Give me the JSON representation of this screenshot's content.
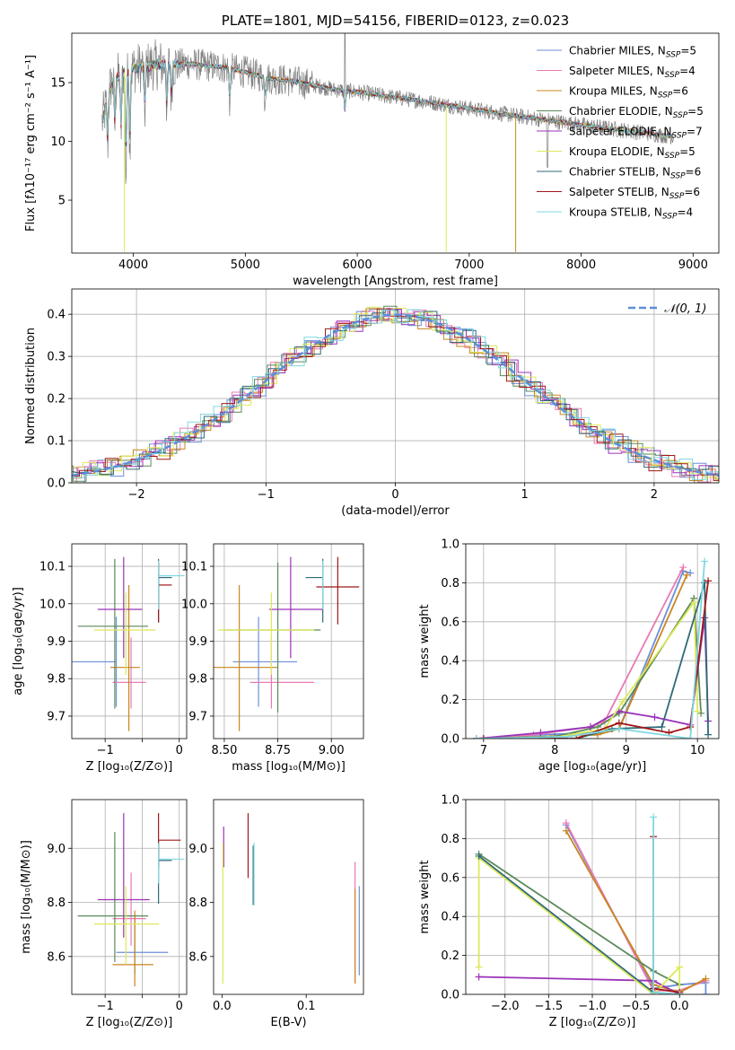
{
  "chart_data": [
    {
      "type": "line",
      "title": "PLATE=1801, MJD=54156, FIBERID=0123, z=0.023",
      "xlabel": "wavelength [Angstrom, rest frame]",
      "ylabel": "Flux [fλ10⁻¹⁷ erg cm⁻² s⁻¹ A⁻¹]",
      "xlim": [
        3450,
        9230
      ],
      "ylim": [
        0.5,
        19.2
      ],
      "xticks": [
        4000,
        5000,
        6000,
        7000,
        8000,
        9000
      ],
      "yticks": [
        5,
        10,
        15
      ],
      "grid": false,
      "legend_position": "top-right",
      "observed_spectrum_color": "#808080",
      "continuum": {
        "x": [
          3700,
          3800,
          3900,
          4000,
          4200,
          4500,
          4800,
          5000,
          5200,
          5500,
          5800,
          6000,
          6300,
          6600,
          7000,
          7400,
          7700,
          8000,
          8500,
          9000
        ],
        "y": [
          10.8,
          14.8,
          15.8,
          16.2,
          16.5,
          16.6,
          16.3,
          15.9,
          15.4,
          15.0,
          14.4,
          14.2,
          13.8,
          13.4,
          12.8,
          12.2,
          11.8,
          11.4,
          10.8,
          10.2
        ]
      },
      "absorption_features": [
        {
          "x": 3770,
          "depth": 4.0
        },
        {
          "x": 3835,
          "depth": 4.0
        },
        {
          "x": 3890,
          "depth": 5.0
        },
        {
          "x": 3934,
          "depth": 9.0
        },
        {
          "x": 3968,
          "depth": 7.0
        },
        {
          "x": 4102,
          "depth": 4.0
        },
        {
          "x": 4300,
          "depth": 4.0
        },
        {
          "x": 4340,
          "depth": 3.0
        },
        {
          "x": 4861,
          "depth": 3.0
        },
        {
          "x": 5175,
          "depth": 2.0
        },
        {
          "x": 5890,
          "depth": 2.0
        }
      ],
      "series": [
        {
          "name": "Chabrier MILES",
          "nssp": "5",
          "color": "#6b8fd9"
        },
        {
          "name": "Salpeter MILES",
          "nssp": "4",
          "color": "#e87ab6"
        },
        {
          "name": "Kroupa MILES",
          "nssp": "6",
          "color": "#c8861e"
        },
        {
          "name": "Chabrier ELODIE",
          "nssp": "5",
          "color": "#5b8a5a"
        },
        {
          "name": "Salpeter ELODIE",
          "nssp": "7",
          "color": "#9b32b8"
        },
        {
          "name": "Kroupa ELODIE",
          "nssp": "5",
          "color": "#dde85a"
        },
        {
          "name": "Chabrier STELIB",
          "nssp": "6",
          "color": "#2f6a78"
        },
        {
          "name": "Salpeter STELIB",
          "nssp": "6",
          "color": "#a01818"
        },
        {
          "name": "Kroupa STELIB",
          "nssp": "4",
          "color": "#80d8e0"
        }
      ],
      "legend_subscript": "SSP",
      "legend_prefix": "N"
    },
    {
      "type": "line",
      "xlabel": "(data-model)/error",
      "ylabel": "Normed distribution",
      "xlim": [
        -2.5,
        2.5
      ],
      "ylim": [
        0,
        0.46
      ],
      "xticks": [
        -2,
        -1,
        0,
        1,
        2
      ],
      "yticks": [
        0.0,
        0.1,
        0.2,
        0.3,
        0.4
      ],
      "grid": true,
      "legend_position": "top-right",
      "normal_curve": {
        "label": "𝒩(0, 1)",
        "color": "#5b8fd9"
      },
      "histogram_bin_width": 0.1,
      "series_colors": [
        "#6b8fd9",
        "#e87ab6",
        "#c8861e",
        "#5b8a5a",
        "#9b32b8",
        "#dde85a",
        "#2f6a78",
        "#a01818",
        "#80d8e0"
      ]
    },
    {
      "type": "scatter",
      "ylabel": "age  [log₁₀(age/yr)]",
      "xlabel": "Z [log₁₀(Z/Z⊙)]",
      "xlim": [
        -1.45,
        0.1
      ],
      "ylim": [
        9.64,
        10.16
      ],
      "xticks": [
        -1,
        -0.5,
        0
      ],
      "xticklabels": [
        "−1",
        "",
        "0"
      ],
      "yticks": [
        9.7,
        9.8,
        9.9,
        10.0,
        10.1
      ],
      "grid": true,
      "crosses": [
        {
          "x": -0.85,
          "y": 9.845,
          "xerr": [
            0.85,
            0.0
          ],
          "yerr": [
            0.0,
            0.0
          ],
          "color": "#6b8fd9"
        },
        {
          "x": -0.85,
          "y": 9.845,
          "xerr": [
            0.0,
            0.0
          ],
          "yerr": [
            0.12,
            0.12
          ],
          "color": "#6b8fd9"
        },
        {
          "x": -0.65,
          "y": 9.79,
          "xerr": [
            0.25,
            0.2
          ],
          "yerr": [
            0.07,
            0.12
          ],
          "color": "#e87ab6"
        },
        {
          "x": -0.68,
          "y": 9.83,
          "xerr": [
            0.25,
            0.15
          ],
          "yerr": [
            0.17,
            0.22
          ],
          "color": "#c8861e"
        },
        {
          "x": -0.87,
          "y": 9.94,
          "xerr": [
            0.5,
            0.45
          ],
          "yerr": [
            0.22,
            0.18
          ],
          "color": "#5b8a5a"
        },
        {
          "x": -0.75,
          "y": 9.985,
          "xerr": [
            0.35,
            0.25
          ],
          "yerr": [
            0.13,
            0.14
          ],
          "color": "#9b32b8"
        },
        {
          "x": -0.72,
          "y": 9.93,
          "xerr": [
            0.43,
            0.4
          ],
          "yerr": [
            0.12,
            0.1
          ],
          "color": "#dde85a"
        },
        {
          "x": -0.28,
          "y": 10.07,
          "xerr": [
            0.0,
            0.18
          ],
          "yerr": [
            0.12,
            0.05
          ],
          "color": "#2f6a78"
        },
        {
          "x": -0.28,
          "y": 10.05,
          "xerr": [
            0.0,
            0.18
          ],
          "yerr": [
            0.1,
            0.06
          ],
          "color": "#a01818"
        },
        {
          "x": -0.28,
          "y": 10.075,
          "xerr": [
            0.0,
            0.35
          ],
          "yerr": [
            0.09,
            0.04
          ],
          "color": "#80d8e0"
        }
      ]
    },
    {
      "type": "scatter",
      "xlabel": "mass [log₁₀(M/M⊙)]",
      "ylabel": "",
      "xlim": [
        8.45,
        9.15
      ],
      "ylim": [
        9.64,
        10.16
      ],
      "xticks": [
        8.5,
        8.75,
        9.0
      ],
      "xticklabels": [
        "8.50",
        "8.75",
        "9.00"
      ],
      "yticks": [
        9.7,
        9.8,
        9.9,
        10.0,
        10.1
      ],
      "grid": true,
      "crosses": [
        {
          "x": 8.66,
          "y": 9.845,
          "xerr": [
            0.12,
            0.18
          ],
          "yerr": [
            0.12,
            0.12
          ],
          "color": "#6b8fd9"
        },
        {
          "x": 8.72,
          "y": 9.79,
          "xerr": [
            0.1,
            0.2
          ],
          "yerr": [
            0.07,
            0.12
          ],
          "color": "#e87ab6"
        },
        {
          "x": 8.57,
          "y": 9.83,
          "xerr": [
            0.13,
            0.18
          ],
          "yerr": [
            0.17,
            0.22
          ],
          "color": "#c8861e"
        },
        {
          "x": 8.75,
          "y": 9.93,
          "xerr": [
            0.25,
            0.2
          ],
          "yerr": [
            0.22,
            0.18
          ],
          "color": "#5b8a5a"
        },
        {
          "x": 8.81,
          "y": 9.985,
          "xerr": [
            0.1,
            0.15
          ],
          "yerr": [
            0.13,
            0.14
          ],
          "color": "#9b32b8"
        },
        {
          "x": 8.72,
          "y": 9.93,
          "xerr": [
            0.25,
            0.2
          ],
          "yerr": [
            0.12,
            0.1
          ],
          "color": "#dde85a"
        },
        {
          "x": 8.96,
          "y": 10.07,
          "xerr": [
            0.08,
            0.0
          ],
          "yerr": [
            0.12,
            0.05
          ],
          "color": "#2f6a78"
        },
        {
          "x": 9.03,
          "y": 10.045,
          "xerr": [
            0.1,
            0.1
          ],
          "yerr": [
            0.1,
            0.08
          ],
          "color": "#a01818"
        },
        {
          "x": 8.96,
          "y": 10.075,
          "xerr": [
            0.0,
            0.0
          ],
          "yerr": [
            0.09,
            0.04
          ],
          "color": "#80d8e0"
        }
      ]
    },
    {
      "type": "line",
      "xlabel": "age  [log₁₀(age/yr)]",
      "ylabel": "mass weight",
      "xlim": [
        6.75,
        10.3
      ],
      "ylim": [
        0,
        1.0
      ],
      "xticks": [
        7,
        8,
        9,
        10
      ],
      "yticks": [
        0.0,
        0.2,
        0.4,
        0.6,
        0.8,
        1.0
      ],
      "grid": true,
      "series": [
        {
          "color": "#6b8fd9",
          "x": [
            6.9,
            7.8,
            8.6,
            8.9,
            9.8,
            9.9
          ],
          "y": [
            0.0,
            0.02,
            0.03,
            0.05,
            0.86,
            0.85
          ]
        },
        {
          "color": "#e87ab6",
          "x": [
            6.9,
            7.7,
            8.5,
            8.7,
            9.8
          ],
          "y": [
            0.0,
            0.02,
            0.06,
            0.09,
            0.88
          ]
        },
        {
          "color": "#c8861e",
          "x": [
            6.9,
            7.8,
            8.6,
            8.9,
            9.85
          ],
          "y": [
            0.0,
            0.01,
            0.02,
            0.05,
            0.84
          ]
        },
        {
          "color": "#5b8a5a",
          "x": [
            6.9,
            8.0,
            8.6,
            8.9,
            9.95,
            10.05
          ],
          "y": [
            0.0,
            0.01,
            0.06,
            0.13,
            0.72,
            0.13
          ]
        },
        {
          "color": "#9b32b8",
          "x": [
            6.9,
            7.8,
            8.5,
            8.9,
            9.4,
            9.9,
            10.1,
            10.15
          ],
          "y": [
            0.0,
            0.03,
            0.06,
            0.14,
            0.11,
            0.07,
            0.62,
            0.09
          ]
        },
        {
          "color": "#dde85a",
          "x": [
            6.9,
            7.9,
            8.7,
            8.95,
            9.95,
            10.0
          ],
          "y": [
            0.0,
            0.0,
            0.05,
            0.19,
            0.7,
            0.14
          ]
        },
        {
          "color": "#2f6a78",
          "x": [
            7.0,
            8.3,
            8.8,
            9.5,
            10.1,
            10.15
          ],
          "y": [
            0.0,
            0.0,
            0.05,
            0.06,
            0.8,
            0.02
          ]
        },
        {
          "color": "#a01818",
          "x": [
            7.0,
            8.3,
            8.9,
            9.6,
            9.9,
            10.15
          ],
          "y": [
            0.0,
            0.0,
            0.08,
            0.03,
            0.06,
            0.81
          ]
        },
        {
          "color": "#80d8e0",
          "x": [
            6.9,
            8.2,
            8.9,
            9.9,
            10.1
          ],
          "y": [
            0.0,
            0.01,
            0.05,
            0.0,
            0.91
          ]
        }
      ]
    },
    {
      "type": "scatter",
      "ylabel": "mass [log₁₀(M/M⊙)]",
      "xlabel": "Z [log₁₀(Z/Z⊙)]",
      "xlim": [
        -1.45,
        0.1
      ],
      "ylim": [
        8.46,
        9.18
      ],
      "xticks": [
        -1,
        -0.5,
        0
      ],
      "xticklabels": [
        "−1",
        "",
        "0"
      ],
      "yticks": [
        8.6,
        8.8,
        9.0
      ],
      "grid": true,
      "crosses": [
        {
          "x": -0.6,
          "y": 8.615,
          "xerr": [
            0.25,
            0.45
          ],
          "yerr": [
            0.08,
            0.13
          ],
          "color": "#6b8fd9"
        },
        {
          "x": -0.65,
          "y": 8.74,
          "xerr": [
            0.25,
            0.2
          ],
          "yerr": [
            0.1,
            0.17
          ],
          "color": "#e87ab6"
        },
        {
          "x": -0.6,
          "y": 8.57,
          "xerr": [
            0.3,
            0.25
          ],
          "yerr": [
            0.08,
            0.2
          ],
          "color": "#c8861e"
        },
        {
          "x": -0.87,
          "y": 8.75,
          "xerr": [
            0.5,
            0.45
          ],
          "yerr": [
            0.17,
            0.31
          ],
          "color": "#5b8a5a"
        },
        {
          "x": -0.75,
          "y": 8.81,
          "xerr": [
            0.35,
            0.35
          ],
          "yerr": [
            0.14,
            0.32
          ],
          "color": "#9b32b8"
        },
        {
          "x": -0.72,
          "y": 8.72,
          "xerr": [
            0.43,
            0.45
          ],
          "yerr": [
            0.15,
            0.14
          ],
          "color": "#dde85a"
        },
        {
          "x": -0.28,
          "y": 8.955,
          "xerr": [
            0.0,
            0.18
          ],
          "yerr": [
            0.16,
            0.07
          ],
          "color": "#2f6a78"
        },
        {
          "x": -0.28,
          "y": 9.03,
          "xerr": [
            0.0,
            0.3
          ],
          "yerr": [
            0.1,
            0.1
          ],
          "color": "#a01818"
        },
        {
          "x": -0.28,
          "y": 8.96,
          "xerr": [
            0.0,
            0.35
          ],
          "yerr": [
            0.09,
            0.06
          ],
          "color": "#80d8e0"
        }
      ]
    },
    {
      "type": "scatter",
      "xlabel": "E(B-V)",
      "ylabel": "",
      "xlim": [
        -0.01,
        0.168
      ],
      "ylim": [
        8.46,
        9.18
      ],
      "xticks": [
        0.0,
        0.1
      ],
      "xticklabels": [
        "0.0",
        "0.1"
      ],
      "yticks": [
        8.6,
        8.8,
        9.0
      ],
      "grid": false,
      "crosses": [
        {
          "x": 0.163,
          "y": 8.6,
          "xerr": [
            0.0,
            0.0
          ],
          "yerr": [
            0.07,
            0.26
          ],
          "color": "#6b8fd9"
        },
        {
          "x": 0.158,
          "y": 8.7,
          "xerr": [
            0.0,
            0.0
          ],
          "yerr": [
            0.2,
            0.25
          ],
          "color": "#e87ab6"
        },
        {
          "x": 0.158,
          "y": 8.7,
          "xerr": [
            0.0,
            0.0
          ],
          "yerr": [
            0.2,
            0.15
          ],
          "color": "#c8861e"
        },
        {
          "x": 0.037,
          "y": 8.9,
          "xerr": [
            0.0,
            0.0
          ],
          "yerr": [
            0.11,
            0.11
          ],
          "color": "#2f6a78"
        },
        {
          "x": 0.031,
          "y": 9.01,
          "xerr": [
            0.0,
            0.0
          ],
          "yerr": [
            0.12,
            0.12
          ],
          "color": "#a01818"
        },
        {
          "x": 0.038,
          "y": 8.9,
          "xerr": [
            0.0,
            0.0
          ],
          "yerr": [
            0.11,
            0.12
          ],
          "color": "#80d8e0"
        },
        {
          "x": 0.002,
          "y": 9.0,
          "xerr": [
            0.0,
            0.0
          ],
          "yerr": [
            0.07,
            0.08
          ],
          "color": "#9b32b8"
        },
        {
          "x": 0.001,
          "y": 8.75,
          "xerr": [
            0.0,
            0.0
          ],
          "yerr": [
            0.25,
            0.27
          ],
          "color": "#dde85a"
        }
      ]
    },
    {
      "type": "line",
      "xlabel": "Z [log₁₀(Z/Z⊙)]",
      "ylabel": "mass weight",
      "xlim": [
        -2.45,
        0.45
      ],
      "ylim": [
        0,
        1.0
      ],
      "xticks": [
        -2.0,
        -1.5,
        -1.0,
        -0.5,
        0.0
      ],
      "xticklabels": [
        "−2.0",
        "−1.5",
        "−1.0",
        "−0.5",
        "0.0"
      ],
      "yticks": [
        0.0,
        0.2,
        0.4,
        0.6,
        0.8,
        1.0
      ],
      "grid": true,
      "series": [
        {
          "color": "#6b8fd9",
          "x": [
            -1.3,
            -0.3,
            0.0,
            0.3,
            0.3
          ],
          "y": [
            0.87,
            0.03,
            0.05,
            0.06,
            0.0
          ]
        },
        {
          "color": "#e87ab6",
          "x": [
            -1.3,
            -0.3,
            0.0,
            0.3
          ],
          "y": [
            0.88,
            0.02,
            0.02,
            0.07
          ]
        },
        {
          "color": "#c8861e",
          "x": [
            -1.3,
            -0.3,
            0.0,
            0.3
          ],
          "y": [
            0.84,
            0.05,
            0.01,
            0.08
          ]
        },
        {
          "color": "#5b8a5a",
          "x": [
            -2.3,
            -0.3,
            0.0
          ],
          "y": [
            0.72,
            0.12,
            0.05
          ]
        },
        {
          "color": "#9b32b8",
          "x": [
            -2.3,
            -0.3,
            0.0
          ],
          "y": [
            0.09,
            0.07,
            0.0
          ]
        },
        {
          "color": "#dde85a",
          "x": [
            -2.3,
            -2.3,
            -0.3,
            0.0,
            0.0
          ],
          "y": [
            0.14,
            0.7,
            0.0,
            0.14,
            0.0
          ]
        },
        {
          "color": "#2f6a78",
          "x": [
            -2.3,
            -0.3,
            0.0
          ],
          "y": [
            0.71,
            0.01,
            0.0
          ]
        },
        {
          "color": "#a01818",
          "x": [
            -0.3,
            -0.3,
            0.0
          ],
          "y": [
            0.81,
            0.03,
            0.01
          ]
        },
        {
          "color": "#80d8e0",
          "x": [
            -0.3,
            -0.3,
            0.0
          ],
          "y": [
            0.91,
            0.01,
            0.0
          ]
        }
      ]
    }
  ]
}
